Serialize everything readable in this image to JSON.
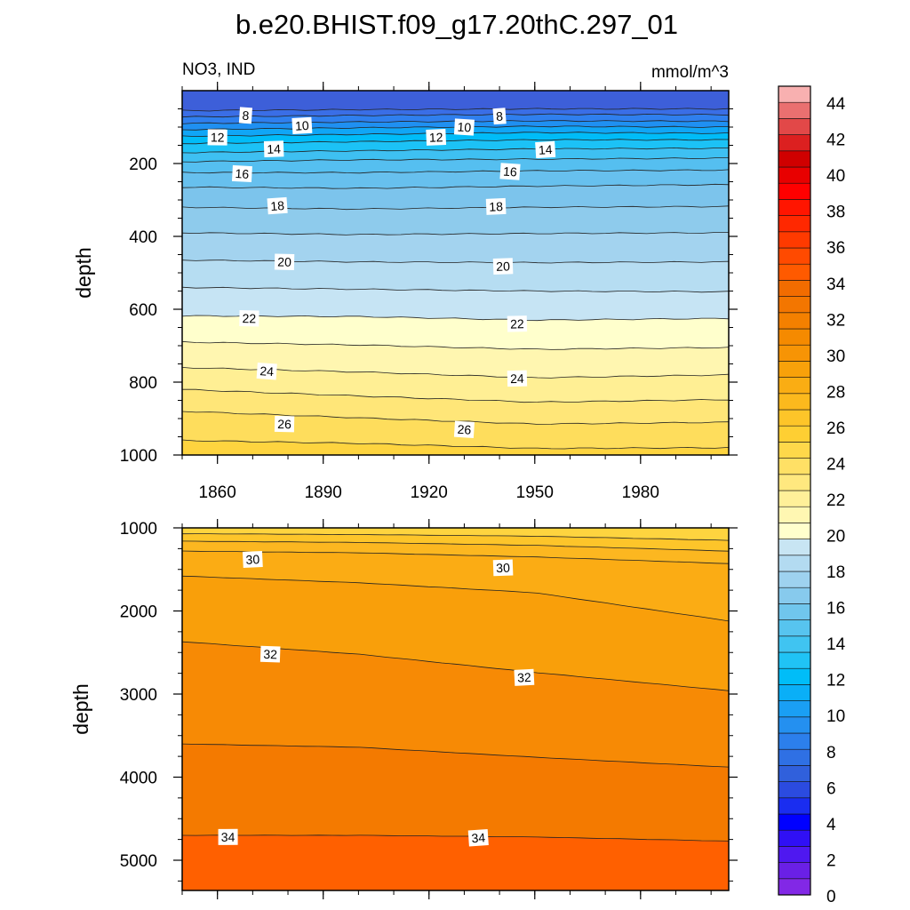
{
  "chart_data": {
    "type": "contour",
    "title": "b.e20.BHIST.f09_g17.20thC.297_01",
    "variable_label": "NO3, IND",
    "units_label": "mmol/m^3",
    "ylabel": "depth",
    "x_ticks": [
      "1860",
      "1890",
      "1920",
      "1950",
      "1980"
    ],
    "xlim": [
      1850,
      2005
    ],
    "panels": [
      {
        "name": "upper",
        "ylim": [
          0,
          1000
        ],
        "y_reversed": true,
        "y_ticks": [
          "200",
          "400",
          "600",
          "800",
          "1000"
        ],
        "top_fill_color": "#3d5fd9",
        "contours": [
          {
            "level": 8,
            "color": "#3a6ee6",
            "depth": [
              [
                1850,
                55
              ],
              [
                1900,
                52
              ],
              [
                1950,
                50
              ],
              [
                2005,
                50
              ]
            ]
          },
          {
            "level": 9,
            "color": "#2f7fee",
            "depth": [
              [
                1850,
                72
              ],
              [
                1900,
                68
              ],
              [
                1950,
                65
              ],
              [
                2005,
                66
              ]
            ]
          },
          {
            "level": 10,
            "color": "#1f90f2",
            "depth": [
              [
                1850,
                90
              ],
              [
                1900,
                86
              ],
              [
                1950,
                83
              ],
              [
                2005,
                84
              ]
            ]
          },
          {
            "level": 11,
            "color": "#10a6f6",
            "depth": [
              [
                1850,
                107
              ],
              [
                1900,
                102
              ],
              [
                1950,
                98
              ],
              [
                2005,
                100
              ]
            ]
          },
          {
            "level": 12,
            "color": "#00bcf8",
            "depth": [
              [
                1850,
                125
              ],
              [
                1900,
                120
              ],
              [
                1950,
                115
              ],
              [
                2005,
                117
              ]
            ]
          },
          {
            "level": 13,
            "color": "#1cc2f6",
            "depth": [
              [
                1850,
                145
              ],
              [
                1900,
                140
              ],
              [
                1950,
                135
              ],
              [
                2005,
                135
              ]
            ]
          },
          {
            "level": 14,
            "color": "#3ec0f2",
            "depth": [
              [
                1850,
                170
              ],
              [
                1900,
                165
              ],
              [
                1950,
                160
              ],
              [
                2005,
                158
              ]
            ]
          },
          {
            "level": 15,
            "color": "#55bff0",
            "depth": [
              [
                1850,
                195
              ],
              [
                1900,
                190
              ],
              [
                1950,
                188
              ],
              [
                2005,
                185
              ]
            ]
          },
          {
            "level": 16,
            "color": "#67c0ee",
            "depth": [
              [
                1850,
                225
              ],
              [
                1900,
                225
              ],
              [
                1950,
                220
              ],
              [
                2005,
                218
              ]
            ]
          },
          {
            "level": 17,
            "color": "#7cc4ec",
            "depth": [
              [
                1850,
                265
              ],
              [
                1900,
                268
              ],
              [
                1950,
                262
              ],
              [
                2005,
                258
              ]
            ]
          },
          {
            "level": 18,
            "color": "#8ecbec",
            "depth": [
              [
                1850,
                320
              ],
              [
                1900,
                325
              ],
              [
                1950,
                320
              ],
              [
                2005,
                318
              ]
            ]
          },
          {
            "level": 19,
            "color": "#a3d3ef",
            "depth": [
              [
                1850,
                390
              ],
              [
                1900,
                395
              ],
              [
                1950,
                392
              ],
              [
                2005,
                390
              ]
            ]
          },
          {
            "level": 20,
            "color": "#b6ddf2",
            "depth": [
              [
                1850,
                465
              ],
              [
                1900,
                470
              ],
              [
                1950,
                472
              ],
              [
                2005,
                470
              ]
            ]
          },
          {
            "level": 21,
            "color": "#c6e4f4",
            "depth": [
              [
                1850,
                540
              ],
              [
                1900,
                545
              ],
              [
                1950,
                550
              ],
              [
                2005,
                552
              ]
            ]
          },
          {
            "level": 22,
            "color": "#ffffcc",
            "depth": [
              [
                1850,
                618
              ],
              [
                1900,
                620
              ],
              [
                1950,
                630
              ],
              [
                2005,
                625
              ]
            ]
          },
          {
            "level": 23,
            "color": "#fff6b0",
            "depth": [
              [
                1850,
                690
              ],
              [
                1900,
                698
              ],
              [
                1950,
                710
              ],
              [
                2005,
                705
              ]
            ]
          },
          {
            "level": 24,
            "color": "#ffef94",
            "depth": [
              [
                1850,
                760
              ],
              [
                1900,
                772
              ],
              [
                1950,
                788
              ],
              [
                2005,
                780
              ]
            ]
          },
          {
            "level": 25,
            "color": "#ffe678",
            "depth": [
              [
                1850,
                820
              ],
              [
                1900,
                838
              ],
              [
                1950,
                855
              ],
              [
                2005,
                848
              ]
            ]
          },
          {
            "level": 26,
            "color": "#fedd5c",
            "depth": [
              [
                1850,
                880
              ],
              [
                1900,
                898
              ],
              [
                1950,
                915
              ],
              [
                2005,
                910
              ]
            ]
          },
          {
            "level": 27,
            "color": "#fed43f",
            "depth": [
              [
                1850,
                960
              ],
              [
                1900,
                968
              ],
              [
                1950,
                982
              ],
              [
                2005,
                980
              ]
            ]
          }
        ],
        "labels": [
          {
            "text": "8",
            "x": 1868,
            "depth": 68
          },
          {
            "text": "10",
            "x": 1884,
            "depth": 96
          },
          {
            "text": "12",
            "x": 1860,
            "depth": 128
          },
          {
            "text": "14",
            "x": 1876,
            "depth": 160
          },
          {
            "text": "16",
            "x": 1867,
            "depth": 228
          },
          {
            "text": "18",
            "x": 1877,
            "depth": 316
          },
          {
            "text": "20",
            "x": 1879,
            "depth": 470
          },
          {
            "text": "22",
            "x": 1869,
            "depth": 625
          },
          {
            "text": "24",
            "x": 1874,
            "depth": 770
          },
          {
            "text": "26",
            "x": 1879,
            "depth": 915
          },
          {
            "text": "12",
            "x": 1922,
            "depth": 128
          },
          {
            "text": "10",
            "x": 1930,
            "depth": 100
          },
          {
            "text": "8",
            "x": 1940,
            "depth": 70
          },
          {
            "text": "14",
            "x": 1953,
            "depth": 162
          },
          {
            "text": "16",
            "x": 1943,
            "depth": 222
          },
          {
            "text": "18",
            "x": 1939,
            "depth": 318
          },
          {
            "text": "20",
            "x": 1941,
            "depth": 482
          },
          {
            "text": "22",
            "x": 1945,
            "depth": 640
          },
          {
            "text": "24",
            "x": 1945,
            "depth": 790
          },
          {
            "text": "26",
            "x": 1930,
            "depth": 930
          }
        ]
      },
      {
        "name": "lower",
        "ylim": [
          1000,
          5400
        ],
        "y_reversed": true,
        "y_ticks": [
          "1000",
          "2000",
          "3000",
          "4000",
          "5000"
        ],
        "top_fill_color": "#fed43f",
        "contours": [
          {
            "level": 28,
            "color": "#fdc52a",
            "depth": [
              [
                1850,
                1070
              ],
              [
                1900,
                1080
              ],
              [
                1950,
                1100
              ],
              [
                2005,
                1150
              ]
            ]
          },
          {
            "level": 28.5,
            "color": "#fcb720",
            "depth": [
              [
                1850,
                1160
              ],
              [
                1900,
                1175
              ],
              [
                1950,
                1210
              ],
              [
                2005,
                1280
              ]
            ]
          },
          {
            "level": 29,
            "color": "#fbac14",
            "depth": [
              [
                1850,
                1280
              ],
              [
                1900,
                1300
              ],
              [
                1950,
                1350
              ],
              [
                2005,
                1430
              ]
            ]
          },
          {
            "level": 30,
            "color": "#f99f0a",
            "depth": [
              [
                1850,
                1580
              ],
              [
                1900,
                1660
              ],
              [
                1950,
                1780
              ],
              [
                2005,
                2120
              ]
            ]
          },
          {
            "level": 32,
            "color": "#f78a05",
            "depth": [
              [
                1850,
                2370
              ],
              [
                1900,
                2520
              ],
              [
                1950,
                2740
              ],
              [
                2005,
                2960
              ]
            ]
          },
          {
            "level": 33,
            "color": "#f47a00",
            "depth": [
              [
                1850,
                3600
              ],
              [
                1900,
                3640
              ],
              [
                1950,
                3760
              ],
              [
                2005,
                3880
              ]
            ]
          },
          {
            "level": 34,
            "color": "#ff6000",
            "depth": [
              [
                1850,
                4700
              ],
              [
                1900,
                4700
              ],
              [
                1950,
                4720
              ],
              [
                2005,
                4770
              ]
            ]
          }
        ],
        "labels": [
          {
            "text": "30",
            "x": 1870,
            "depth": 1380
          },
          {
            "text": "30",
            "x": 1941,
            "depth": 1480
          },
          {
            "text": "32",
            "x": 1875,
            "depth": 2520
          },
          {
            "text": "32",
            "x": 1947,
            "depth": 2800
          },
          {
            "text": "34",
            "x": 1863,
            "depth": 4720
          },
          {
            "text": "34",
            "x": 1934,
            "depth": 4730
          }
        ]
      }
    ],
    "colorbar": {
      "labels": [
        "0",
        "2",
        "4",
        "6",
        "8",
        "10",
        "12",
        "14",
        "16",
        "18",
        "20",
        "22",
        "24",
        "26",
        "28",
        "30",
        "32",
        "34",
        "36",
        "38",
        "40",
        "42",
        "44"
      ],
      "colors": [
        "#8228e6",
        "#6a20e6",
        "#4f18f0",
        "#3010f5",
        "#0000ff",
        "#1a2df0",
        "#2b4be0",
        "#3060dc",
        "#2f70e4",
        "#2c7fec",
        "#2490f0",
        "#1a9ff4",
        "#0aaff7",
        "#00bdf8",
        "#20c3f5",
        "#40c4f1",
        "#57c4ef",
        "#70c6ed",
        "#87caed",
        "#9ed2ef",
        "#b3dbf1",
        "#c8e5f3",
        "#ffffcc",
        "#fff7b2",
        "#fff099",
        "#ffe87f",
        "#ffe065",
        "#fed84a",
        "#fecf33",
        "#fdc529",
        "#fcb91d",
        "#faad13",
        "#f8a10a",
        "#f79405",
        "#f58a00",
        "#f48000",
        "#f37600",
        "#f26c00",
        "#ff5a00",
        "#ff4a00",
        "#ff3a00",
        "#ff2800",
        "#ff1500",
        "#ff0000",
        "#e80000",
        "#d00000",
        "#dc2020",
        "#e24848",
        "#ea7070",
        "#f8b0b0"
      ]
    }
  }
}
